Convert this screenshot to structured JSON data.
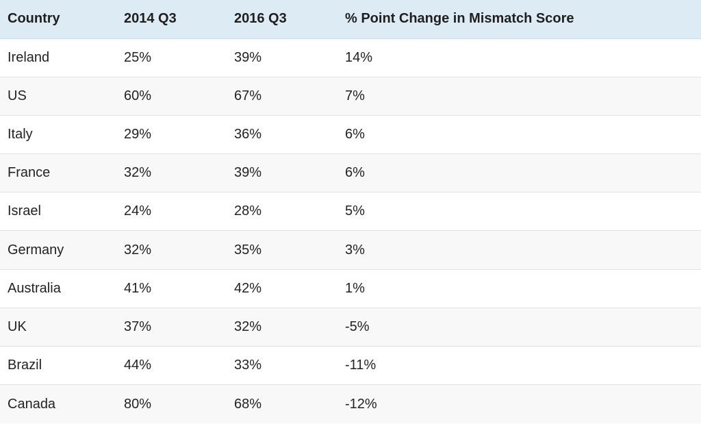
{
  "table": {
    "headers": [
      "Country",
      "2014 Q3",
      "2016 Q3",
      "% Point Change in Mismatch Score"
    ],
    "rows": [
      [
        "Ireland",
        "25%",
        "39%",
        "14%"
      ],
      [
        "US",
        "60%",
        "67%",
        "7%"
      ],
      [
        "Italy",
        "29%",
        "36%",
        "6%"
      ],
      [
        "France",
        "32%",
        "39%",
        "6%"
      ],
      [
        "Israel",
        "24%",
        "28%",
        "5%"
      ],
      [
        "Germany",
        "32%",
        "35%",
        "3%"
      ],
      [
        "Australia",
        "41%",
        "42%",
        "1%"
      ],
      [
        "UK",
        "37%",
        "32%",
        "-5%"
      ],
      [
        "Brazil",
        "44%",
        "33%",
        "-11%"
      ],
      [
        "Canada",
        "80%",
        "68%",
        "-12%"
      ]
    ]
  },
  "colors": {
    "header_background": "#ddebf4",
    "row_alt_background": "#f8f8f8",
    "row_divider": "#e2e2e2",
    "text": "#222222"
  }
}
